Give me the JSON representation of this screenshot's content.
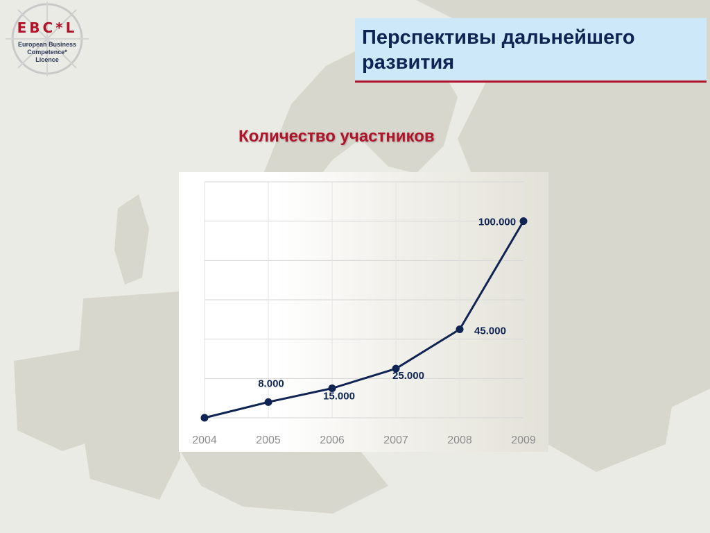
{
  "logo": {
    "brand": "EBC*L",
    "line1": "European Business",
    "line2": "Competence*",
    "line3": "Licence"
  },
  "slide": {
    "title": "Перспективы дальнейшего развития",
    "subtitle": "Количество участников"
  },
  "colors": {
    "accent_red": "#b0132a",
    "navy": "#0f2453",
    "title_box": "#cde9f9"
  },
  "chart_data": {
    "type": "line",
    "title": "Количество участников",
    "categories": [
      "2004",
      "2005",
      "2006",
      "2007",
      "2008",
      "2009"
    ],
    "values": [
      0,
      8000,
      15000,
      25000,
      45000,
      100000
    ],
    "data_labels": [
      "",
      "8.000",
      "15.000",
      "25.000",
      "45.000",
      "100.000"
    ],
    "xlabel": "",
    "ylabel": "",
    "ylim": [
      0,
      120000
    ],
    "grid": true,
    "legend": "none"
  }
}
